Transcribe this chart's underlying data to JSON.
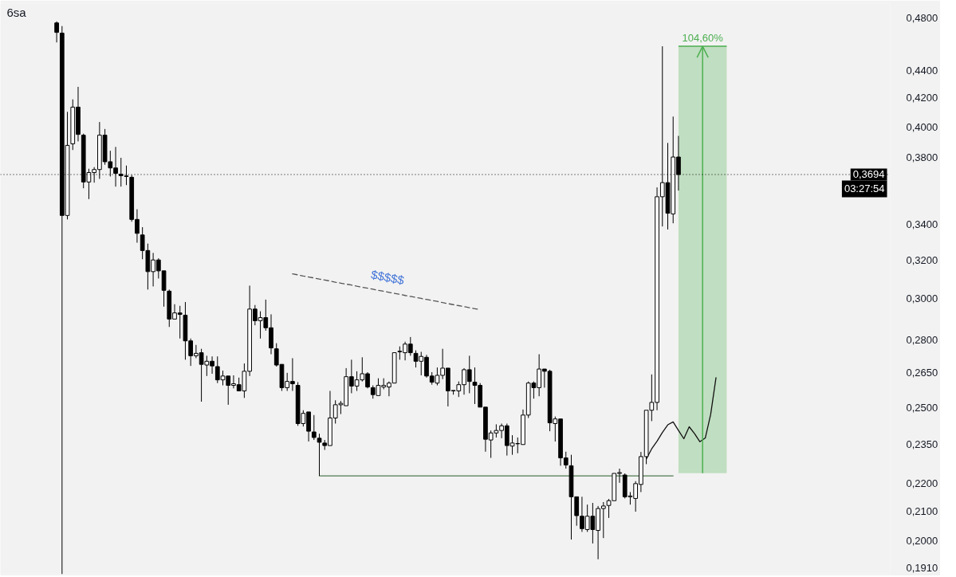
{
  "chart_data": {
    "type": "candlestick",
    "title": "6sa",
    "categories": [
      null,
      null,
      null,
      null,
      null,
      null,
      null,
      null,
      null,
      null,
      null,
      null,
      null,
      null,
      null,
      null,
      null,
      null,
      null,
      null,
      null,
      null,
      null,
      null,
      null,
      null,
      null,
      null,
      null,
      null,
      null,
      null,
      null,
      null,
      null,
      null,
      null,
      null,
      null,
      null,
      null,
      null,
      null,
      null,
      null,
      null,
      null,
      null,
      null,
      null,
      null,
      null,
      null,
      null,
      null,
      null,
      null,
      null,
      null,
      null,
      null,
      null,
      null,
      null,
      null,
      null,
      null,
      null,
      null,
      null,
      null,
      null,
      null,
      null,
      null,
      null,
      null,
      null,
      null,
      null,
      null,
      null,
      null,
      null,
      null,
      null,
      null,
      null,
      null,
      null,
      null,
      null,
      null,
      null,
      null,
      null,
      null,
      null,
      null,
      null,
      null,
      null,
      null,
      null,
      null,
      null,
      null,
      null,
      null,
      null,
      null,
      null,
      null,
      null,
      null,
      null,
      null,
      null,
      null,
      null,
      null,
      null,
      null,
      null,
      null,
      null,
      null,
      null,
      null,
      null,
      null,
      null,
      null,
      null,
      null,
      null,
      null,
      null,
      null,
      null,
      null,
      null,
      null,
      null,
      null,
      null,
      null,
      null,
      null,
      null,
      null,
      null,
      null,
      null,
      null,
      null,
      null,
      null,
      null,
      null,
      null,
      null,
      null,
      null,
      null,
      null
    ],
    "ohlc": [
      null,
      null,
      null,
      null,
      null,
      null,
      null,
      null,
      null,
      null,
      [
        0.4763,
        0.4775,
        0.461,
        0.4688
      ],
      [
        0.4682,
        0.4738,
        0.189,
        0.3449
      ],
      [
        0.3449,
        0.4103,
        0.3426,
        0.3879
      ],
      [
        0.3889,
        0.419,
        0.3849,
        0.4136
      ],
      [
        0.4136,
        0.4279,
        0.3905,
        0.3951
      ],
      [
        0.3946,
        0.3956,
        0.361,
        0.3648
      ],
      [
        0.3648,
        0.373,
        0.3545,
        0.3706
      ],
      [
        0.3706,
        0.374,
        0.3644,
        0.3725
      ],
      [
        0.3725,
        0.4034,
        0.3667,
        0.3946
      ],
      [
        0.3946,
        0.3987,
        0.3755,
        0.3774
      ],
      [
        0.3774,
        0.3844,
        0.3682,
        0.3735
      ],
      [
        0.3735,
        0.3869,
        0.362,
        0.3701
      ],
      [
        0.3696,
        0.3799,
        0.362,
        0.3687
      ],
      [
        0.3685,
        0.375,
        0.3629,
        0.3682
      ],
      [
        0.3677,
        0.3691,
        0.3413,
        0.3426
      ],
      [
        0.3426,
        0.3485,
        0.3295,
        0.3347
      ],
      [
        0.3338,
        0.3382,
        0.3205,
        0.3252
      ],
      [
        0.3252,
        0.329,
        0.3046,
        0.3139
      ],
      [
        0.3139,
        0.3239,
        0.3062,
        0.3201
      ],
      [
        0.3201,
        0.321,
        0.3103,
        0.3143
      ],
      [
        0.3143,
        0.3147,
        0.296,
        0.3042
      ],
      [
        0.3038,
        0.3046,
        0.2861,
        0.2899
      ],
      [
        0.2899,
        0.2972,
        0.2895,
        0.2929
      ],
      [
        0.2929,
        0.2964,
        0.2806,
        0.2922
      ],
      [
        0.2918,
        0.2983,
        0.2708,
        0.2795
      ],
      [
        0.2795,
        0.2806,
        0.268,
        0.2726
      ],
      [
        0.2726,
        0.2776,
        0.2715,
        0.2737
      ],
      [
        0.274,
        0.2758,
        0.2524,
        0.2687
      ],
      [
        0.2684,
        0.2726,
        0.2635,
        0.2701
      ],
      [
        0.2701,
        0.2723,
        0.2645,
        0.268
      ],
      [
        0.2677,
        0.2723,
        0.2604,
        0.2618
      ],
      [
        0.2618,
        0.2659,
        0.2594,
        0.2635
      ],
      [
        0.2635,
        0.2638,
        0.2511,
        0.2594
      ],
      [
        0.2594,
        0.2638,
        0.2581,
        0.2601
      ],
      [
        0.2597,
        0.2628,
        0.2567,
        0.257
      ],
      [
        0.257,
        0.2691,
        0.254,
        0.2656
      ],
      [
        0.2656,
        0.3066,
        0.2635,
        0.2948
      ],
      [
        0.2948,
        0.2968,
        0.2869,
        0.2891
      ],
      [
        0.2891,
        0.2937,
        0.2806,
        0.2906
      ],
      [
        0.2906,
        0.2995,
        0.2843,
        0.2857
      ],
      [
        0.2857,
        0.2922,
        0.2733,
        0.2762
      ],
      [
        0.2758,
        0.2784,
        0.2677,
        0.2684
      ],
      [
        0.2687,
        0.2691,
        0.257,
        0.2584
      ],
      [
        0.2584,
        0.2649,
        0.257,
        0.2611
      ],
      [
        0.2611,
        0.2715,
        0.257,
        0.2601
      ],
      [
        0.2594,
        0.2608,
        0.2424,
        0.2433
      ],
      [
        0.2433,
        0.2488,
        0.2421,
        0.2475
      ],
      [
        0.2481,
        0.2485,
        0.2361,
        0.2402
      ],
      [
        0.2399,
        0.2468,
        0.2367,
        0.2377
      ],
      [
        0.2374,
        0.2392,
        0.2229,
        0.2358
      ],
      [
        0.2355,
        0.2367,
        0.2328,
        0.2345
      ],
      [
        0.2345,
        0.257,
        0.2343,
        0.2456
      ],
      [
        0.2456,
        0.253,
        0.2433,
        0.2511
      ],
      [
        0.2511,
        0.2527,
        0.2472,
        0.2517
      ],
      [
        0.2507,
        0.267,
        0.2504,
        0.2632
      ],
      [
        0.2632,
        0.2708,
        0.256,
        0.2591
      ],
      [
        0.2591,
        0.2656,
        0.257,
        0.2618
      ],
      [
        0.2618,
        0.2719,
        0.2611,
        0.2645
      ],
      [
        0.2645,
        0.2652,
        0.2581,
        0.2587
      ],
      [
        0.2584,
        0.2594,
        0.2537,
        0.2554
      ],
      [
        0.255,
        0.2625,
        0.2547,
        0.2594
      ],
      [
        0.2587,
        0.2625,
        0.2577,
        0.2594
      ],
      [
        0.2587,
        0.2611,
        0.2547,
        0.2604
      ],
      [
        0.2604,
        0.2744,
        0.2601,
        0.274
      ],
      [
        0.2744,
        0.2769,
        0.2708,
        0.2747
      ],
      [
        0.274,
        0.2791,
        0.2705,
        0.278
      ],
      [
        0.278,
        0.2813,
        0.2726,
        0.274
      ],
      [
        0.2737,
        0.2751,
        0.2673,
        0.2701
      ],
      [
        0.2701,
        0.2744,
        0.2638,
        0.2723
      ],
      [
        0.2719,
        0.273,
        0.2628,
        0.2635
      ],
      [
        0.2635,
        0.2652,
        0.2597,
        0.2608
      ],
      [
        0.2604,
        0.2673,
        0.2594,
        0.2638
      ],
      [
        0.2638,
        0.2758,
        0.2621,
        0.267
      ],
      [
        0.267,
        0.2673,
        0.2504,
        0.257
      ],
      [
        0.257,
        0.2577,
        0.2554,
        0.2572
      ],
      [
        0.257,
        0.2611,
        0.2544,
        0.2597
      ],
      [
        0.2597,
        0.267,
        0.2554,
        0.2663
      ],
      [
        0.2663,
        0.2726,
        0.256,
        0.2611
      ],
      [
        0.2608,
        0.2673,
        0.2514,
        0.2594
      ],
      [
        0.2594,
        0.2604,
        0.2498,
        0.2501
      ],
      [
        0.2501,
        0.2504,
        0.2321,
        0.237
      ],
      [
        0.2367,
        0.2405,
        0.2297,
        0.2395
      ],
      [
        0.2395,
        0.243,
        0.2377,
        0.2405
      ],
      [
        0.2405,
        0.2433,
        0.2374,
        0.2424
      ],
      [
        0.2424,
        0.2433,
        0.2306,
        0.2345
      ],
      [
        0.2343,
        0.2386,
        0.2309,
        0.2355
      ],
      [
        0.2352,
        0.2377,
        0.2315,
        0.2353
      ],
      [
        0.2349,
        0.2491,
        0.2346,
        0.2468
      ],
      [
        0.2468,
        0.2611,
        0.2456,
        0.2604
      ],
      [
        0.2604,
        0.2611,
        0.2537,
        0.2584
      ],
      [
        0.2584,
        0.2733,
        0.2547,
        0.2666
      ],
      [
        0.2666,
        0.267,
        0.2584,
        0.2656
      ],
      [
        0.2656,
        0.2663,
        0.2402,
        0.2436
      ],
      [
        0.2433,
        0.2462,
        0.2361,
        0.2452
      ],
      [
        0.2452,
        0.2456,
        0.2267,
        0.2297
      ],
      [
        0.2297,
        0.2321,
        0.2256,
        0.227
      ],
      [
        0.2267,
        0.2309,
        0.2003,
        0.2152
      ],
      [
        0.2152,
        0.2155,
        0.205,
        0.2085
      ],
      [
        0.2083,
        0.2152,
        0.2029,
        0.204
      ],
      [
        0.2037,
        0.2124,
        0.2029,
        0.2083
      ],
      [
        0.2083,
        0.213,
        0.199,
        0.2037
      ],
      [
        0.2034,
        0.2119,
        0.1938,
        0.211
      ],
      [
        0.211,
        0.2133,
        0.2008,
        0.2119
      ],
      [
        0.2121,
        0.2144,
        0.2077,
        0.2138
      ],
      [
        0.2138,
        0.2241,
        0.2135,
        0.2238
      ],
      [
        0.2238,
        0.2256,
        0.2203,
        0.2241
      ],
      [
        0.2232,
        0.2238,
        0.2146,
        0.2152
      ],
      [
        0.2152,
        0.2169,
        0.2124,
        0.2155
      ],
      [
        0.2146,
        0.2209,
        0.2099,
        0.22
      ],
      [
        0.2197,
        0.232,
        0.2169,
        0.2302
      ],
      [
        0.2302,
        0.2491,
        0.2273,
        0.2488
      ],
      [
        0.2488,
        0.2642,
        0.2443,
        0.2521
      ],
      [
        0.2521,
        0.3615,
        0.2488,
        0.3559
      ],
      [
        0.3559,
        0.458,
        0.3386,
        0.3644
      ],
      [
        0.3644,
        0.3895,
        0.3369,
        0.3462
      ],
      [
        0.3458,
        0.4071,
        0.3404,
        0.3804
      ],
      [
        0.3804,
        0.3941,
        0.3596,
        0.3694
      ],
      null,
      null,
      null,
      null,
      null,
      null,
      null,
      null,
      null,
      null,
      null,
      null,
      null,
      null,
      null,
      null,
      null,
      null,
      null,
      null,
      null,
      null,
      null,
      null,
      null,
      null,
      null,
      null,
      null,
      null,
      null,
      null,
      null,
      null,
      null,
      null,
      null,
      null,
      null
    ],
    "ylim": [
      0.189,
      0.492
    ],
    "yticks": [
      {
        "value": 0.191,
        "label": "0,1910"
      },
      {
        "value": 0.2,
        "label": "0,2000"
      },
      {
        "value": 0.21,
        "label": "0,2100"
      },
      {
        "value": 0.22,
        "label": "0,2200"
      },
      {
        "value": 0.235,
        "label": "0,2350"
      },
      {
        "value": 0.25,
        "label": "0,2500"
      },
      {
        "value": 0.265,
        "label": "0,2650"
      },
      {
        "value": 0.28,
        "label": "0,2800"
      },
      {
        "value": 0.3,
        "label": "0,3000"
      },
      {
        "value": 0.32,
        "label": "0,3200"
      },
      {
        "value": 0.34,
        "label": "0,3400"
      },
      {
        "value": 0.38,
        "label": "0,3800"
      },
      {
        "value": 0.4,
        "label": "0,4000"
      },
      {
        "value": 0.42,
        "label": "0,4200"
      },
      {
        "value": 0.44,
        "label": "0,4400"
      },
      {
        "value": 0.48,
        "label": "0,4800"
      }
    ],
    "log": true,
    "tick_labels": "y",
    "ref_lines": [
      {
        "axis": "y",
        "value": 0.3694,
        "label": "0,3694",
        "color": "#000000",
        "line_style": "dotted"
      }
    ],
    "annotations": [
      {
        "text": "03:27:54",
        "y": 0.3694
      }
    ],
    "series": [
      {
        "type": "line",
        "name": "104,60%",
        "color": "#4caf50",
        "values": [
          null,
          null,
          null,
          null,
          null,
          null,
          null,
          null,
          null,
          null,
          null,
          null,
          null,
          null,
          null,
          null,
          null,
          null,
          null,
          null,
          null,
          null,
          null,
          null,
          null,
          null,
          null,
          null,
          null,
          null,
          null,
          null,
          null,
          null,
          null,
          null,
          null,
          null,
          null,
          null,
          null,
          null,
          null,
          null,
          null,
          null,
          null,
          null,
          null,
          null,
          null,
          null,
          null,
          null,
          null,
          null,
          null,
          null,
          null,
          null,
          null,
          null,
          null,
          null,
          null,
          null,
          null,
          null,
          null,
          null,
          null,
          null,
          null,
          null,
          null,
          null,
          null,
          null,
          null,
          null,
          null,
          null,
          null,
          null,
          null,
          null,
          null,
          null,
          null,
          null,
          null,
          null,
          null,
          null,
          null,
          null,
          null,
          null,
          null,
          null,
          null,
          null,
          null,
          null,
          null,
          null,
          null,
          null,
          null,
          null,
          null,
          null,
          null,
          null,
          null,
          null,
          null,
          null,
          null,
          null,
          null,
          null,
          null,
          null,
          null,
          null,
          0.458,
          0.458,
          0.458,
          0.458,
          0.458,
          0.458,
          0.458,
          0.458,
          0.458,
          0.458,
          null,
          null,
          null,
          null,
          null,
          null,
          null,
          null,
          null,
          null,
          null,
          null,
          null,
          null,
          null,
          null,
          null,
          null,
          null,
          null,
          null,
          null,
          null,
          null,
          null,
          null,
          null,
          null,
          null,
          null
        ],
        "lower": [
          null,
          null,
          null,
          null,
          null,
          null,
          null,
          null,
          null,
          null,
          null,
          null,
          null,
          null,
          null,
          null,
          null,
          null,
          null,
          null,
          null,
          null,
          null,
          null,
          null,
          null,
          null,
          null,
          null,
          null,
          null,
          null,
          null,
          null,
          null,
          null,
          null,
          null,
          null,
          null,
          null,
          null,
          null,
          null,
          null,
          null,
          null,
          null,
          null,
          null,
          null,
          null,
          null,
          null,
          null,
          null,
          null,
          null,
          null,
          null,
          null,
          null,
          null,
          null,
          null,
          null,
          null,
          null,
          null,
          null,
          null,
          null,
          null,
          null,
          null,
          null,
          null,
          null,
          null,
          null,
          null,
          null,
          null,
          null,
          null,
          null,
          null,
          null,
          null,
          null,
          null,
          null,
          null,
          null,
          null,
          null,
          null,
          null,
          null,
          null,
          null,
          null,
          null,
          null,
          null,
          null,
          null,
          null,
          null,
          null,
          null,
          null,
          null,
          null,
          null,
          null,
          null,
          null,
          null,
          null,
          null,
          null,
          null,
          null,
          null,
          null,
          0.2239,
          0.2239,
          0.2239,
          0.2239,
          0.2239,
          0.2239,
          0.2239,
          0.2239,
          0.2239,
          0.2239,
          null,
          null,
          null,
          null,
          null,
          null,
          null,
          null,
          null,
          null,
          null,
          null,
          null,
          null,
          null,
          null,
          null,
          null,
          null,
          null,
          null,
          null,
          null,
          null,
          null,
          null,
          null,
          null,
          null,
          null
        ],
        "upper": [
          null,
          null,
          null,
          null,
          null,
          null,
          null,
          null,
          null,
          null,
          null,
          null,
          null,
          null,
          null,
          null,
          null,
          null,
          null,
          null,
          null,
          null,
          null,
          null,
          null,
          null,
          null,
          null,
          null,
          null,
          null,
          null,
          null,
          null,
          null,
          null,
          null,
          null,
          null,
          null,
          null,
          null,
          null,
          null,
          null,
          null,
          null,
          null,
          null,
          null,
          null,
          null,
          null,
          null,
          null,
          null,
          null,
          null,
          null,
          null,
          null,
          null,
          null,
          null,
          null,
          null,
          null,
          null,
          null,
          null,
          null,
          null,
          null,
          null,
          null,
          null,
          null,
          null,
          null,
          null,
          null,
          null,
          null,
          null,
          null,
          null,
          null,
          null,
          null,
          null,
          null,
          null,
          null,
          null,
          null,
          null,
          null,
          null,
          null,
          null,
          null,
          null,
          null,
          null,
          null,
          null,
          null,
          null,
          null,
          null,
          null,
          null,
          null,
          null,
          null,
          null,
          null,
          null,
          null,
          null,
          null,
          null,
          null,
          null,
          null,
          null,
          0.458,
          0.458,
          0.458,
          0.458,
          0.458,
          0.458,
          0.458,
          0.458,
          0.458,
          0.458,
          null,
          null,
          null,
          null,
          null,
          null,
          null,
          null,
          null,
          null,
          null,
          null,
          null,
          null,
          null,
          null,
          null,
          null,
          null,
          null,
          null,
          null,
          null,
          null,
          null,
          null,
          null,
          null,
          null,
          null
        ]
      },
      {
        "type": "line",
        "color": "#4d7a4f",
        "values": [
          null,
          null,
          null,
          null,
          null,
          null,
          null,
          null,
          null,
          null,
          null,
          null,
          null,
          null,
          null,
          null,
          null,
          null,
          null,
          null,
          null,
          null,
          null,
          null,
          null,
          null,
          null,
          null,
          null,
          null,
          null,
          null,
          null,
          null,
          null,
          null,
          null,
          null,
          null,
          null,
          null,
          null,
          null,
          null,
          null,
          null,
          null,
          null,
          null,
          null,
          null,
          null,
          null,
          null,
          null,
          null,
          null,
          null,
          null,
          0.2229,
          0.2229,
          0.2229,
          0.2229,
          0.2229,
          0.2229,
          0.2229,
          0.2229,
          0.2229,
          0.2229,
          0.2229,
          0.2229,
          0.2229,
          0.2229,
          0.2229,
          0.2229,
          0.2229,
          0.2229,
          0.2229,
          0.2229,
          0.2229,
          0.2229,
          0.2229,
          0.2229,
          0.2229,
          0.2229,
          0.2229,
          0.2229,
          0.2229,
          0.2229,
          0.2229,
          0.2229,
          0.2229,
          0.2229,
          0.2229,
          0.2229,
          0.2229,
          0.2229,
          0.2229,
          0.2229,
          0.2229,
          0.2229,
          0.2229,
          0.2229,
          0.2229,
          0.2229,
          0.2229,
          0.2229,
          0.2229,
          0.2229,
          0.2229,
          0.2229,
          0.2229,
          0.2229,
          0.2229,
          0.2229,
          0.2229,
          0.2229,
          0.2229,
          0.2229,
          0.2229,
          0.2229,
          0.2229,
          0.2229,
          0.2229,
          0.2229,
          0.2229,
          null,
          null,
          null,
          null,
          null,
          null,
          null,
          null,
          null,
          null,
          null,
          null,
          null,
          null,
          null,
          null,
          null,
          null,
          null,
          null,
          null,
          null,
          null,
          null,
          null,
          null,
          null,
          null,
          null,
          null,
          null,
          null,
          null,
          null,
          null,
          null,
          null,
          null,
          null,
          null
        ]
      },
      {
        "type": "line",
        "name": "$$$$$",
        "color": "#555555",
        "line_style": "dashed",
        "values": [
          null,
          null,
          null,
          null,
          null,
          null,
          null,
          null,
          null,
          null,
          null,
          null,
          null,
          null,
          null,
          null,
          null,
          null,
          null,
          null,
          null,
          null,
          null,
          null,
          null,
          null,
          null,
          null,
          null,
          null,
          null,
          null,
          null,
          null,
          null,
          null,
          null,
          null,
          null,
          null,
          null,
          null,
          null,
          null,
          null,
          null,
          null,
          null,
          null,
          null,
          null,
          null,
          null,
          null,
          0.3127,
          0.3122,
          0.3116,
          0.3111,
          0.3106,
          0.31,
          0.3095,
          0.309,
          0.3084,
          0.3079,
          0.3074,
          0.3069,
          0.3063,
          0.3058,
          0.3053,
          0.3048,
          0.3042,
          0.3037,
          0.3032,
          0.3027,
          0.3022,
          0.3016,
          0.3011,
          0.3006,
          0.3001,
          0.2996,
          0.2991,
          0.2986,
          0.298,
          0.2975,
          0.297,
          0.2965,
          0.296,
          0.2955,
          0.295,
          0.2945,
          null,
          null,
          null,
          null,
          null,
          null,
          null,
          null,
          null,
          null,
          null,
          null,
          null,
          null,
          null,
          null,
          null,
          null,
          null,
          null,
          null,
          null,
          null,
          null,
          null,
          null,
          null,
          null,
          null,
          null,
          null,
          null,
          null,
          null,
          null,
          null,
          null,
          null,
          null,
          null,
          null,
          null,
          null,
          null,
          null,
          null,
          null,
          null,
          null,
          null,
          null,
          null,
          null,
          null,
          null,
          null,
          null,
          null,
          null,
          null,
          null,
          null,
          null,
          null,
          null,
          null,
          null,
          null,
          null,
          null,
          null,
          null,
          null,
          null,
          null,
          null
        ]
      },
      {
        "type": "line",
        "color": "#111111",
        "values": [
          null,
          null,
          null,
          null,
          null,
          null,
          null,
          null,
          null,
          null,
          null,
          null,
          null,
          null,
          null,
          null,
          null,
          null,
          null,
          null,
          null,
          null,
          null,
          null,
          null,
          null,
          null,
          null,
          null,
          null,
          null,
          null,
          null,
          null,
          null,
          null,
          null,
          null,
          null,
          null,
          null,
          null,
          null,
          null,
          null,
          null,
          null,
          null,
          null,
          null,
          null,
          null,
          null,
          null,
          null,
          null,
          null,
          null,
          null,
          null,
          null,
          null,
          null,
          null,
          null,
          null,
          null,
          null,
          null,
          null,
          null,
          null,
          null,
          null,
          null,
          null,
          null,
          null,
          null,
          null,
          null,
          null,
          null,
          null,
          null,
          null,
          null,
          null,
          null,
          null,
          null,
          null,
          null,
          null,
          null,
          null,
          null,
          null,
          null,
          null,
          null,
          null,
          null,
          null,
          null,
          null,
          null,
          null,
          null,
          null,
          null,
          null,
          null,
          null,
          null,
          null,
          null,
          null,
          null,
          null,
          0.2293,
          0.2332,
          0.2362,
          0.2397,
          0.2428,
          0.244,
          0.2405,
          0.2372,
          0.242,
          0.2392,
          0.236,
          0.2375,
          0.247,
          0.2628,
          null,
          null,
          null,
          null,
          null,
          null,
          null,
          null,
          null,
          null,
          null,
          null,
          null,
          null,
          null,
          null,
          null,
          null,
          null,
          null,
          null,
          null,
          null,
          null,
          null,
          null,
          null,
          null,
          null,
          null,
          null,
          null
        ]
      }
    ]
  }
}
